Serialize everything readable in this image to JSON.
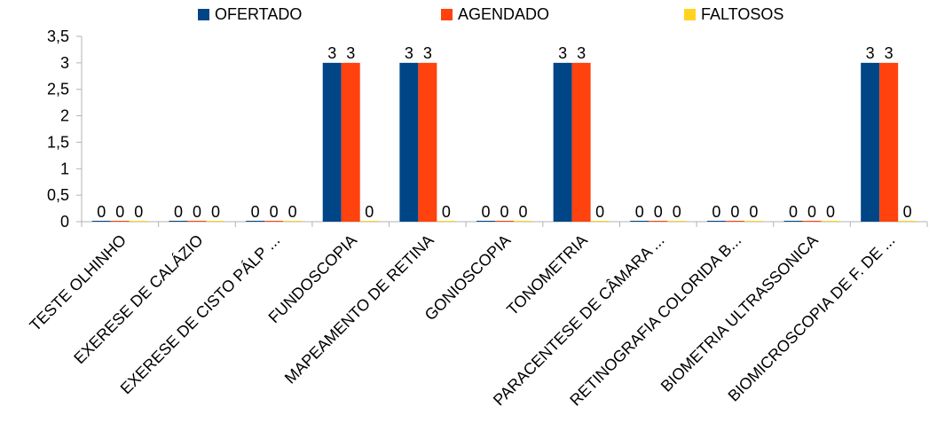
{
  "chart_data": {
    "type": "bar",
    "categories": [
      "TESTE OLHINHO",
      "EXERESE DE CALÁZIO",
      "EXERESE DE CISTO PÁLP ...",
      "FUNDOSCOPIA",
      "MAPEAMENTO DE RETINA",
      "GONIOSCOPIA",
      "TONOMETRIA",
      "PARACENTESE DE CÂMARA ...",
      "RETINOGRAFIA COLORIDA B...",
      "BIOMETRIA ULTRASSONICA",
      "BIOMICROSCOPIA DE F. DE ..."
    ],
    "series": [
      {
        "name": "OFERTADO",
        "color": "#004586",
        "values": [
          0,
          0,
          0,
          3,
          3,
          0,
          3,
          0,
          0,
          0,
          3
        ]
      },
      {
        "name": "AGENDADO",
        "color": "#ff420e",
        "values": [
          0,
          0,
          0,
          3,
          3,
          0,
          3,
          0,
          0,
          0,
          3
        ]
      },
      {
        "name": "FALTOSOS",
        "color": "#ffd320",
        "values": [
          0,
          0,
          0,
          0,
          0,
          0,
          0,
          0,
          0,
          0,
          0
        ]
      }
    ],
    "ylim": [
      0,
      3.5
    ],
    "yticks": [
      "0",
      "0,5",
      "1",
      "1,5",
      "2",
      "2,5",
      "3",
      "3,5"
    ],
    "grid": false,
    "legend_position": "top",
    "data_labels": true
  }
}
